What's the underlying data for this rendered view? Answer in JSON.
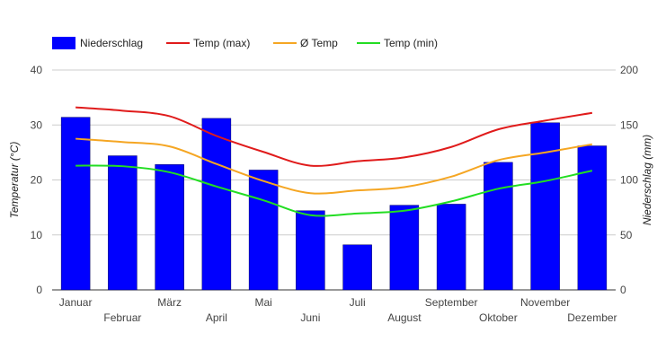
{
  "chart_data": {
    "type": "bar",
    "categories": [
      "Januar",
      "Februar",
      "März",
      "April",
      "Mai",
      "Juni",
      "Juli",
      "August",
      "September",
      "Oktober",
      "November",
      "Dezember"
    ],
    "bars": {
      "name": "Niederschlag",
      "color": "#0000ff",
      "values": [
        157,
        122,
        114,
        156,
        109,
        72,
        41,
        77,
        78,
        116,
        152,
        131
      ]
    },
    "lines": [
      {
        "name": "Temp (max)",
        "color": "#e01b1b",
        "values": [
          33.2,
          32.6,
          31.6,
          28.0,
          25.1,
          22.6,
          23.4,
          24.1,
          26.0,
          29.2,
          30.8,
          32.2
        ]
      },
      {
        "name": "Ø Temp",
        "color": "#f5a623",
        "values": [
          27.5,
          26.9,
          26.1,
          22.9,
          19.8,
          17.6,
          18.1,
          18.7,
          20.6,
          23.6,
          25.0,
          26.5
        ]
      },
      {
        "name": "Temp (min)",
        "color": "#22dd22",
        "values": [
          22.6,
          22.5,
          21.4,
          18.8,
          16.3,
          13.6,
          13.9,
          14.4,
          16.1,
          18.4,
          19.8,
          21.7
        ]
      }
    ],
    "y_left": {
      "label": "Temperatur (°C)",
      "min": 0,
      "max": 40,
      "ticks": [
        0,
        10,
        20,
        30,
        40
      ]
    },
    "y_right": {
      "label": "Niederschlag (mm)",
      "min": 0,
      "max": 200,
      "ticks": [
        0,
        50,
        100,
        150,
        200
      ]
    },
    "grid": true,
    "legend_position": "top-left"
  }
}
